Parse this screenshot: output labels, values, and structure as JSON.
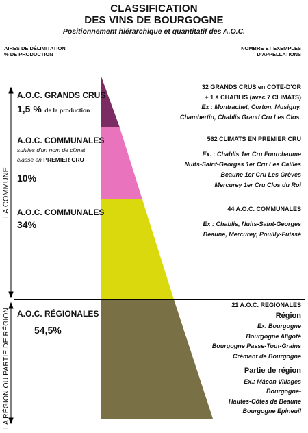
{
  "title_line1": "CLASSIFICATION",
  "title_line2": "DES VINS DE BOURGOGNE",
  "subtitle": "Positionnement hiérarchique et quantitatif des A.O.C.",
  "header_left": [
    "AIRES DE DÉLIMITATION",
    "% DE PRODUCTION"
  ],
  "header_right": [
    "NOMBRE ET EXEMPLES",
    "D'APPELLATIONS"
  ],
  "axis_labels": {
    "commune": "LA  COMMUNE",
    "region": "LA RÉGION OU PARTIE DE RÉGION"
  },
  "levels": {
    "grands_crus": {
      "title": "A.O.C. GRANDS CRUS",
      "percent": "1,5 %",
      "percent_note": "de la production",
      "right": {
        "line1": "32 GRANDS CRUS en COTE-D'OR",
        "line2": "+ 1 à CHABLIS (avec 7 CLIMATS)",
        "ex1": "Ex : Montrachet, Corton, Musigny,",
        "ex2": "Chambertin, Chablis Grand Cru Les Clos."
      }
    },
    "premier_cru": {
      "title": "A.O.C. COMMUNALES",
      "note1": "suivies d'un nom de climat",
      "note2_prefix": "classé en",
      "note2_strong": "PREMIER CRU",
      "percent": "10%",
      "right": {
        "line1": "562 CLIMATS EN PREMIER CRU",
        "ex1": "Ex. : Chablis 1er Cru Fourchaume",
        "ex2": "Nuits-Saint-Georges 1er Cru Les Cailles",
        "ex3": "Beaune 1er Cru Les Grèves",
        "ex4": "Mercurey 1er Cru Clos du Roi"
      }
    },
    "communales": {
      "title": "A.O.C. COMMUNALES",
      "percent": "34%",
      "right": {
        "line1": "44 A.O.C. COMMUNALES",
        "ex1": "Ex : Chablis, Nuits-Saint-Georges",
        "ex2": "Beaune, Mercurey, Pouilly-Fuissé"
      }
    },
    "regionales": {
      "title": "A.O.C. RÉGIONALES",
      "percent": "54,5%",
      "right": {
        "line1": "21 A.O.C. REGIONALES",
        "region_head": "Région",
        "region_ex": [
          "Ex. Bourgogne",
          "Bourgogne Aligoté",
          "Bourgogne Passe-Tout-Grains",
          "Crémant de Bourgogne"
        ],
        "partie_head": "Partie de région",
        "partie_ex": [
          "Ex.: Mâcon Villages",
          "Bourgogne-",
          "Hautes-Côtes de Beaune",
          "Bourgogne Epineuil"
        ]
      }
    }
  },
  "colors": {
    "grands_crus": "#7b2d63",
    "premier_cru": "#ea73bd",
    "communales": "#d9d90e",
    "regionales": "#7a7045"
  }
}
